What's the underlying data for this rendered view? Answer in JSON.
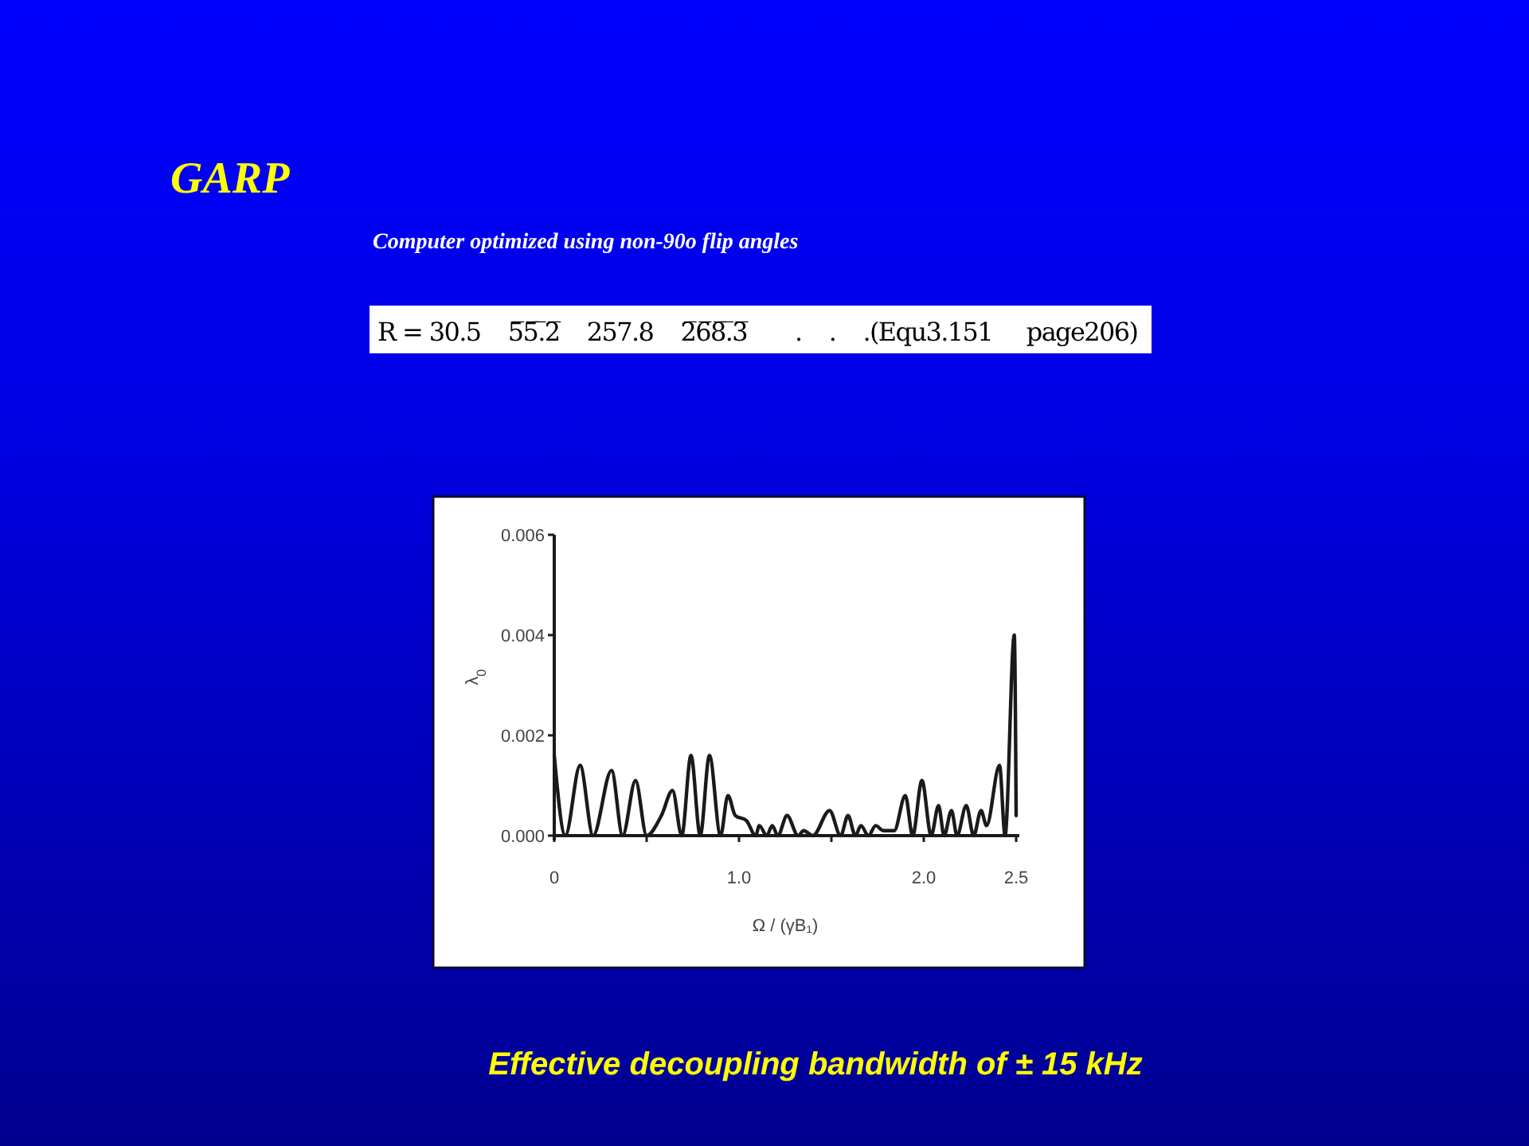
{
  "chart_data": {
    "type": "line",
    "title": "GARP",
    "subtitle": "Computer optimized using non-90o flip angles",
    "xlabel": "Ω / (γB₁)",
    "ylabel": "λ$_{0}$",
    "annotations": [
      "R = 30.5    5̅5̅.̅2̅    257.8    2̅6̅8̅.̅3̅       .    .    .(Equ3.151     page206)",
      "Effective decoupling bandwidth of ± 15 kHz"
    ],
    "x": [
      0,
      0.06,
      0.14,
      0.21,
      0.31,
      0.37,
      0.44,
      0.5,
      0.58,
      0.64,
      0.69,
      0.74,
      0.79,
      0.84,
      0.9,
      0.94,
      0.98,
      1.04,
      1.09,
      1.11,
      1.15,
      1.18,
      1.21,
      1.26,
      1.32,
      1.35,
      1.4,
      1.49,
      1.55,
      1.59,
      1.63,
      1.66,
      1.7,
      1.74,
      1.78,
      1.84,
      1.9,
      1.94,
      1.99,
      2.04,
      2.08,
      2.11,
      2.15,
      2.18,
      2.23,
      2.27,
      2.31,
      2.34,
      2.41,
      2.44,
      2.49,
      2.5
    ],
    "values": [
      0.0016,
      0,
      0.0014,
      0,
      0.0013,
      0,
      0.0011,
      0,
      0.0004,
      0.0009,
      0,
      0.0016,
      0,
      0.0016,
      0,
      0.0008,
      0.0004,
      0.0003,
      0,
      0.0002,
      0,
      0.0002,
      0,
      0.0004,
      0,
      0.0001,
      0,
      0.0005,
      0,
      0.0004,
      0,
      0.0002,
      0,
      0.0002,
      0.0001,
      0.0001,
      0.0008,
      0,
      0.0011,
      0,
      0.0006,
      0,
      0.0005,
      0,
      0.0006,
      0,
      0.0005,
      0.0002,
      0.0014,
      0,
      0.004,
      0.0004
    ],
    "color": "#1a1a1a",
    "xlim": [
      0,
      2.5
    ],
    "ylim": [
      0,
      0.006
    ],
    "xticks": [
      0,
      {
        "value": 0.5,
        "label": null
      },
      {
        "value": 1,
        "label": "1.0"
      },
      {
        "value": 1.5,
        "label": null
      },
      {
        "value": 2,
        "label": "2.0"
      },
      2.5
    ],
    "yticks": [
      {
        "value": 0,
        "label": "0.000"
      },
      {
        "value": 0.002,
        "label": "0.002"
      },
      {
        "value": 0.004,
        "label": "0.004"
      },
      {
        "value": 0.006,
        "label": "0.006"
      }
    ]
  }
}
